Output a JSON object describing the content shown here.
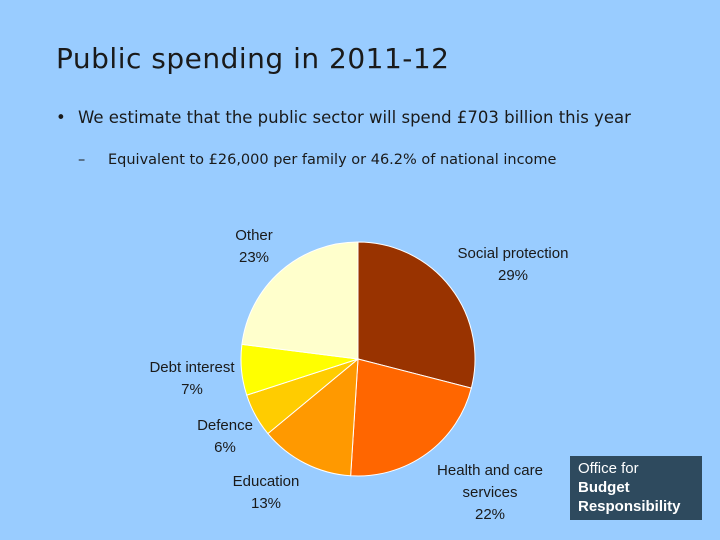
{
  "title": "Public spending in 2011-12",
  "bullet": "We estimate that the public sector will spend £703 billion this year",
  "bullet_marker": "•",
  "sub_bullet": "Equivalent to £26,000 per family or 46.2% of national income",
  "sub_marker": "–",
  "logo": {
    "line1": "Office for",
    "line2": "Budget",
    "line3": "Responsibility",
    "bg_color": "#2e4a5e"
  },
  "chart_data": {
    "type": "pie",
    "title": "",
    "slices": [
      {
        "name": "Social protection",
        "value": 29,
        "label": "29%",
        "color": "#993300"
      },
      {
        "name": "Health and care services",
        "value": 22,
        "label": "22%",
        "color": "#ff6600"
      },
      {
        "name": "Education",
        "value": 13,
        "label": "13%",
        "color": "#ff9900"
      },
      {
        "name": "Defence",
        "value": 6,
        "label": "6%",
        "color": "#ffcc00"
      },
      {
        "name": "Debt interest",
        "value": 7,
        "label": "7%",
        "color": "#ffff00"
      },
      {
        "name": "Other",
        "value": 23,
        "label": "23%",
        "color": "#ffffcc"
      }
    ],
    "start": "12 o'clock",
    "direction": "clockwise"
  }
}
